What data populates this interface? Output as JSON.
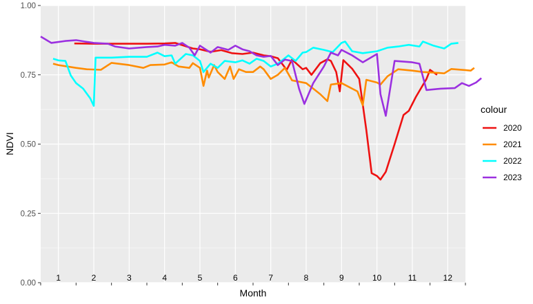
{
  "chart_data": {
    "type": "line",
    "title": "",
    "xlabel": "Month",
    "ylabel": "NDVI",
    "ylim": [
      0,
      1
    ],
    "xlim": [
      0.5,
      12.5
    ],
    "yticks": [
      "0.00",
      "0.25",
      "0.50",
      "0.75",
      "1.00"
    ],
    "month_labels": [
      "1",
      "2",
      "3",
      "4",
      "5",
      "6",
      "7",
      "8",
      "9",
      "10",
      "11",
      "12"
    ],
    "legend": {
      "title": "colour",
      "position": "right"
    },
    "grid": true,
    "series": [
      {
        "name": "2020",
        "color": "#ee1111",
        "points": [
          [
            1.45,
            0.863
          ],
          [
            2.0,
            0.862
          ],
          [
            2.5,
            0.862
          ],
          [
            3.0,
            0.862
          ],
          [
            3.5,
            0.862
          ],
          [
            4.0,
            0.863
          ],
          [
            4.3,
            0.865
          ],
          [
            4.5,
            0.857
          ],
          [
            4.8,
            0.845
          ],
          [
            5.0,
            0.842
          ],
          [
            5.3,
            0.833
          ],
          [
            5.6,
            0.839
          ],
          [
            5.9,
            0.828
          ],
          [
            6.2,
            0.825
          ],
          [
            6.5,
            0.83
          ],
          [
            6.8,
            0.82
          ],
          [
            7.0,
            0.817
          ],
          [
            7.2,
            0.81
          ],
          [
            7.45,
            0.768
          ],
          [
            7.6,
            0.805
          ],
          [
            7.9,
            0.77
          ],
          [
            8.0,
            0.775
          ],
          [
            8.15,
            0.75
          ],
          [
            8.4,
            0.792
          ],
          [
            8.6,
            0.806
          ],
          [
            8.7,
            0.8
          ],
          [
            8.85,
            0.76
          ],
          [
            8.95,
            0.69
          ],
          [
            9.05,
            0.803
          ],
          [
            9.3,
            0.772
          ],
          [
            9.5,
            0.735
          ],
          [
            9.7,
            0.55
          ],
          [
            9.85,
            0.395
          ],
          [
            10.0,
            0.385
          ],
          [
            10.1,
            0.372
          ],
          [
            10.25,
            0.4
          ],
          [
            10.5,
            0.5
          ],
          [
            10.75,
            0.605
          ],
          [
            10.9,
            0.62
          ],
          [
            11.1,
            0.67
          ],
          [
            11.4,
            0.735
          ],
          [
            11.5,
            0.768
          ],
          [
            11.7,
            0.75
          ]
        ]
      },
      {
        "name": "2021",
        "color": "#ff8c00",
        "points": [
          [
            0.85,
            0.79
          ],
          [
            1.0,
            0.785
          ],
          [
            1.5,
            0.775
          ],
          [
            1.8,
            0.77
          ],
          [
            2.2,
            0.768
          ],
          [
            2.5,
            0.793
          ],
          [
            3.0,
            0.785
          ],
          [
            3.4,
            0.775
          ],
          [
            3.6,
            0.785
          ],
          [
            4.0,
            0.787
          ],
          [
            4.2,
            0.795
          ],
          [
            4.4,
            0.78
          ],
          [
            4.7,
            0.775
          ],
          [
            4.8,
            0.792
          ],
          [
            5.0,
            0.775
          ],
          [
            5.1,
            0.71
          ],
          [
            5.2,
            0.765
          ],
          [
            5.25,
            0.74
          ],
          [
            5.4,
            0.785
          ],
          [
            5.5,
            0.76
          ],
          [
            5.7,
            0.735
          ],
          [
            5.85,
            0.78
          ],
          [
            5.95,
            0.735
          ],
          [
            6.1,
            0.77
          ],
          [
            6.3,
            0.76
          ],
          [
            6.5,
            0.76
          ],
          [
            6.7,
            0.78
          ],
          [
            6.8,
            0.77
          ],
          [
            7.0,
            0.735
          ],
          [
            7.2,
            0.75
          ],
          [
            7.4,
            0.775
          ],
          [
            7.6,
            0.73
          ],
          [
            7.8,
            0.725
          ],
          [
            8.0,
            0.72
          ],
          [
            8.2,
            0.7
          ],
          [
            8.4,
            0.68
          ],
          [
            8.6,
            0.655
          ],
          [
            8.7,
            0.715
          ],
          [
            9.0,
            0.72
          ],
          [
            9.3,
            0.7
          ],
          [
            9.45,
            0.69
          ],
          [
            9.6,
            0.64
          ],
          [
            9.7,
            0.732
          ],
          [
            10.0,
            0.722
          ],
          [
            10.1,
            0.715
          ],
          [
            10.3,
            0.745
          ],
          [
            10.6,
            0.77
          ],
          [
            11.0,
            0.765
          ],
          [
            11.3,
            0.76
          ],
          [
            11.6,
            0.758
          ],
          [
            11.9,
            0.755
          ],
          [
            12.1,
            0.771
          ],
          [
            12.5,
            0.767
          ],
          [
            12.65,
            0.765
          ],
          [
            12.75,
            0.775
          ]
        ]
      },
      {
        "name": "2022",
        "color": "#00ffff",
        "points": [
          [
            0.85,
            0.808
          ],
          [
            1.0,
            0.802
          ],
          [
            1.2,
            0.8
          ],
          [
            1.35,
            0.748
          ],
          [
            1.5,
            0.72
          ],
          [
            1.7,
            0.7
          ],
          [
            1.9,
            0.665
          ],
          [
            2.0,
            0.638
          ],
          [
            2.05,
            0.812
          ],
          [
            2.5,
            0.812
          ],
          [
            3.0,
            0.815
          ],
          [
            3.5,
            0.815
          ],
          [
            3.8,
            0.83
          ],
          [
            4.0,
            0.817
          ],
          [
            4.2,
            0.82
          ],
          [
            4.3,
            0.79
          ],
          [
            4.6,
            0.825
          ],
          [
            4.8,
            0.82
          ],
          [
            5.0,
            0.8
          ],
          [
            5.1,
            0.76
          ],
          [
            5.3,
            0.79
          ],
          [
            5.5,
            0.775
          ],
          [
            5.7,
            0.8
          ],
          [
            6.0,
            0.795
          ],
          [
            6.2,
            0.802
          ],
          [
            6.4,
            0.79
          ],
          [
            6.6,
            0.808
          ],
          [
            6.8,
            0.8
          ],
          [
            7.0,
            0.78
          ],
          [
            7.2,
            0.79
          ],
          [
            7.5,
            0.82
          ],
          [
            7.7,
            0.8
          ],
          [
            7.9,
            0.83
          ],
          [
            8.0,
            0.832
          ],
          [
            8.2,
            0.848
          ],
          [
            8.5,
            0.84
          ],
          [
            8.75,
            0.832
          ],
          [
            9.0,
            0.865
          ],
          [
            9.1,
            0.87
          ],
          [
            9.3,
            0.835
          ],
          [
            9.6,
            0.828
          ],
          [
            10.0,
            0.835
          ],
          [
            10.3,
            0.848
          ],
          [
            10.6,
            0.852
          ],
          [
            10.9,
            0.858
          ],
          [
            11.2,
            0.852
          ],
          [
            11.3,
            0.87
          ],
          [
            11.6,
            0.855
          ],
          [
            11.9,
            0.845
          ],
          [
            12.1,
            0.862
          ],
          [
            12.3,
            0.865
          ]
        ]
      },
      {
        "name": "2023",
        "color": "#9b30e0",
        "points": [
          [
            0.5,
            0.888
          ],
          [
            0.8,
            0.865
          ],
          [
            1.2,
            0.872
          ],
          [
            1.5,
            0.875
          ],
          [
            2.0,
            0.865
          ],
          [
            2.4,
            0.862
          ],
          [
            2.6,
            0.852
          ],
          [
            3.0,
            0.845
          ],
          [
            3.5,
            0.85
          ],
          [
            3.8,
            0.852
          ],
          [
            4.0,
            0.858
          ],
          [
            4.3,
            0.855
          ],
          [
            4.5,
            0.865
          ],
          [
            4.7,
            0.848
          ],
          [
            4.85,
            0.82
          ],
          [
            5.0,
            0.855
          ],
          [
            5.3,
            0.83
          ],
          [
            5.5,
            0.85
          ],
          [
            5.8,
            0.84
          ],
          [
            6.0,
            0.855
          ],
          [
            6.2,
            0.842
          ],
          [
            6.4,
            0.835
          ],
          [
            6.6,
            0.82
          ],
          [
            6.8,
            0.815
          ],
          [
            7.0,
            0.818
          ],
          [
            7.2,
            0.785
          ],
          [
            7.4,
            0.805
          ],
          [
            7.6,
            0.8
          ],
          [
            7.8,
            0.7
          ],
          [
            7.95,
            0.645
          ],
          [
            8.2,
            0.72
          ],
          [
            8.5,
            0.78
          ],
          [
            8.7,
            0.83
          ],
          [
            8.9,
            0.82
          ],
          [
            9.0,
            0.84
          ],
          [
            9.3,
            0.82
          ],
          [
            9.6,
            0.795
          ],
          [
            10.0,
            0.825
          ],
          [
            10.1,
            0.68
          ],
          [
            10.25,
            0.602
          ],
          [
            10.5,
            0.8
          ],
          [
            11.0,
            0.795
          ],
          [
            11.2,
            0.79
          ],
          [
            11.4,
            0.695
          ],
          [
            11.8,
            0.7
          ],
          [
            12.2,
            0.702
          ],
          [
            12.4,
            0.72
          ],
          [
            12.6,
            0.71
          ],
          [
            12.8,
            0.722
          ],
          [
            12.95,
            0.738
          ]
        ]
      }
    ]
  }
}
